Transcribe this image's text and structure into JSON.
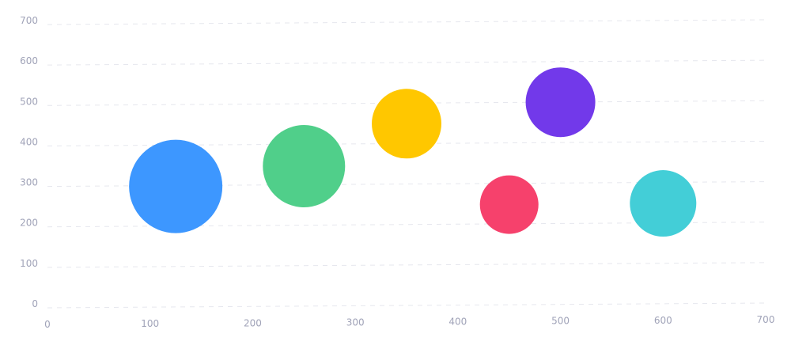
{
  "chart_data": {
    "type": "scatter",
    "title": "",
    "xlabel": "",
    "ylabel": "",
    "xlim": [
      0,
      700
    ],
    "ylim": [
      0,
      700
    ],
    "x_ticks": [
      0,
      100,
      200,
      300,
      400,
      500,
      600,
      700
    ],
    "y_ticks": [
      0,
      100,
      200,
      300,
      400,
      500,
      600,
      700
    ],
    "grid": "horizontal-dashed",
    "legend": "none",
    "points": [
      {
        "x": 125,
        "y": 300,
        "r": 118,
        "color": "#3d97ff"
      },
      {
        "x": 250,
        "y": 350,
        "r": 104,
        "color": "#50cf8a"
      },
      {
        "x": 350,
        "y": 455,
        "r": 88,
        "color": "#ffc700"
      },
      {
        "x": 450,
        "y": 255,
        "r": 74,
        "color": "#f6416c"
      },
      {
        "x": 500,
        "y": 508,
        "r": 88,
        "color": "#7239ea"
      },
      {
        "x": 600,
        "y": 258,
        "r": 84,
        "color": "#43ced7"
      }
    ]
  }
}
